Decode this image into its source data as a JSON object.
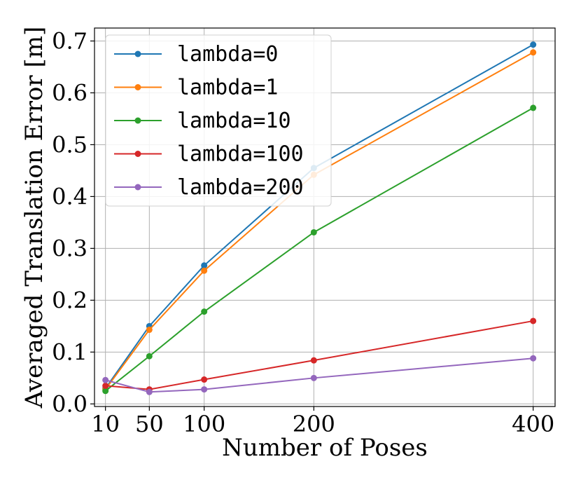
{
  "chart_data": {
    "type": "line",
    "title": "",
    "xlabel": "Number of Poses",
    "ylabel": "Averaged Translation Error [m]",
    "x": [
      10,
      50,
      100,
      200,
      400
    ],
    "xticks": [
      "10",
      "50",
      "100",
      "200",
      "400"
    ],
    "yticks": [
      "0.0",
      "0.1",
      "0.2",
      "0.3",
      "0.4",
      "0.5",
      "0.6",
      "0.7"
    ],
    "xlim": [
      0,
      420
    ],
    "ylim": [
      -0.005,
      0.725
    ],
    "grid": true,
    "legend_position": "top-left",
    "series": [
      {
        "name": "lambda=0",
        "color": "#1f77b4",
        "values": [
          0.03,
          0.15,
          0.267,
          0.455,
          0.693
        ]
      },
      {
        "name": "lambda=1",
        "color": "#ff7f0e",
        "values": [
          0.028,
          0.143,
          0.257,
          0.442,
          0.678
        ]
      },
      {
        "name": "lambda=10",
        "color": "#2ca02c",
        "values": [
          0.025,
          0.092,
          0.178,
          0.331,
          0.571
        ]
      },
      {
        "name": "lambda=100",
        "color": "#d62728",
        "values": [
          0.035,
          0.028,
          0.047,
          0.084,
          0.16
        ]
      },
      {
        "name": "lambda=200",
        "color": "#9467bd",
        "values": [
          0.046,
          0.023,
          0.028,
          0.05,
          0.088
        ]
      }
    ]
  }
}
